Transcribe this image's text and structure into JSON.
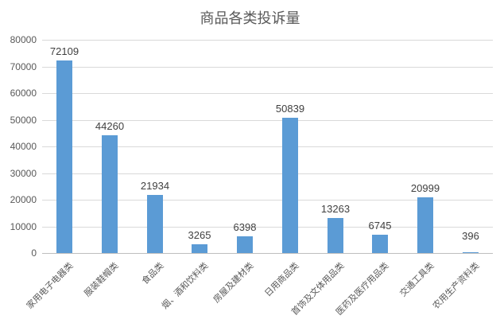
{
  "chart_data": {
    "type": "bar",
    "title": "商品各类投诉量",
    "categories": [
      "家用电子电器类",
      "服装鞋帽类",
      "食品类",
      "烟、酒和饮料类",
      "房屋及建材类",
      "日用商品类",
      "首饰及文体用品类",
      "医药及医疗用品类",
      "交通工具类",
      "农用生产资料类"
    ],
    "values": [
      72109,
      44260,
      21934,
      3265,
      6398,
      50839,
      13263,
      6745,
      20999,
      396
    ],
    "data_labels": [
      "72109",
      "44260",
      "21934",
      "3265",
      "6398",
      "50839",
      "13263",
      "6745",
      "20999",
      "396"
    ],
    "xlabel": "",
    "ylabel": "",
    "ylim": [
      0,
      80000
    ],
    "ytick_step": 10000,
    "ytick_labels": [
      "0",
      "10000",
      "20000",
      "30000",
      "40000",
      "50000",
      "60000",
      "70000",
      "80000"
    ],
    "grid": true,
    "legend": false,
    "colors": {
      "bar": "#5B9BD5",
      "title": "#595959",
      "axis_labels": "#595959",
      "data_labels": "#404040",
      "gridline": "#D9D9D9",
      "axis_line": "#BFBFBF",
      "background": "#FFFFFF"
    }
  }
}
